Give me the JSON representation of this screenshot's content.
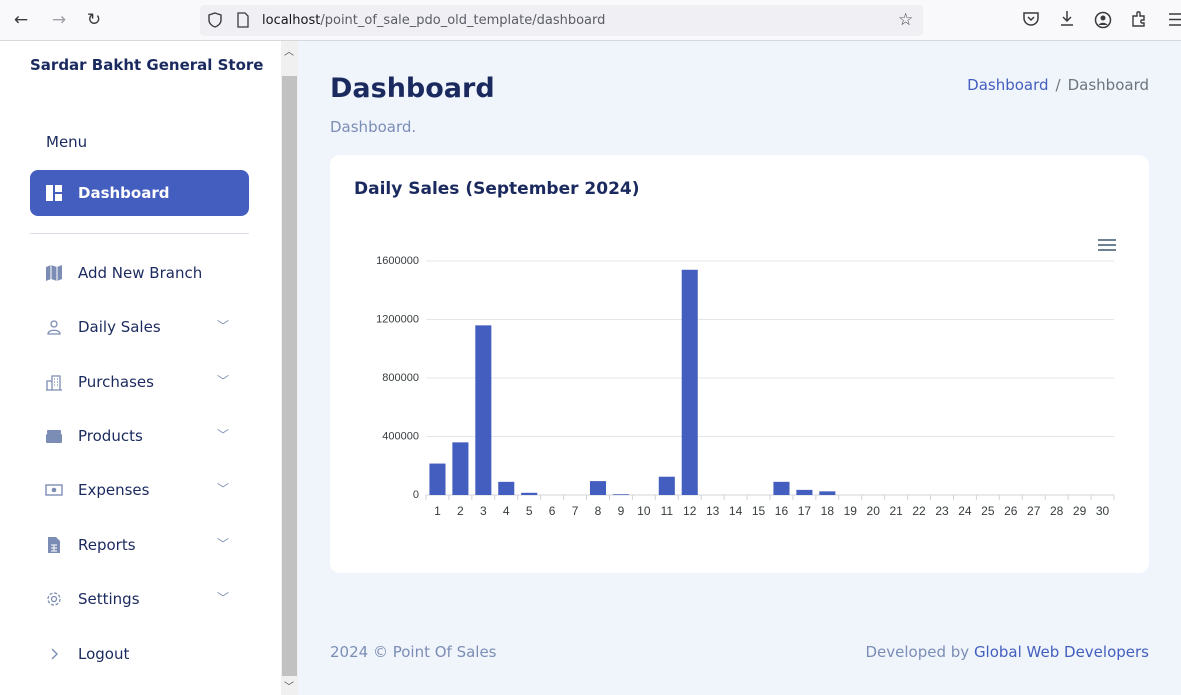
{
  "browser": {
    "url_host": "localhost",
    "url_path": "/point_of_sale_pdo_old_template/dashboard"
  },
  "sidebar": {
    "brand": "Sardar Bakht General Store",
    "menu_title": "Menu",
    "items": [
      {
        "label": "Dashboard",
        "icon": "grid-icon",
        "active": true,
        "has_submenu": false
      },
      {
        "label": "Add New Branch",
        "icon": "map-icon",
        "active": false,
        "has_submenu": false
      },
      {
        "label": "Daily Sales",
        "icon": "person-icon",
        "active": false,
        "has_submenu": true
      },
      {
        "label": "Purchases",
        "icon": "building-icon",
        "active": false,
        "has_submenu": true
      },
      {
        "label": "Products",
        "icon": "box-icon",
        "active": false,
        "has_submenu": true
      },
      {
        "label": "Expenses",
        "icon": "cash-icon",
        "active": false,
        "has_submenu": true
      },
      {
        "label": "Reports",
        "icon": "document-icon",
        "active": false,
        "has_submenu": true
      },
      {
        "label": "Settings",
        "icon": "gear-icon",
        "active": false,
        "has_submenu": true
      },
      {
        "label": "Logout",
        "icon": "chevron-right-icon",
        "active": false,
        "has_submenu": false
      }
    ]
  },
  "header": {
    "title": "Dashboard",
    "subtitle": "Dashboard.",
    "breadcrumb": [
      "Dashboard",
      "Dashboard"
    ]
  },
  "card": {
    "title": "Daily Sales (September 2024)"
  },
  "chart_data": {
    "type": "bar",
    "categories": [
      "1",
      "2",
      "3",
      "4",
      "5",
      "6",
      "7",
      "8",
      "9",
      "10",
      "11",
      "12",
      "13",
      "14",
      "15",
      "16",
      "17",
      "18",
      "19",
      "20",
      "21",
      "22",
      "23",
      "24",
      "25",
      "26",
      "27",
      "28",
      "29",
      "30"
    ],
    "values": [
      215000,
      360000,
      1160000,
      90000,
      15000,
      0,
      0,
      95000,
      5000,
      0,
      125000,
      1540000,
      0,
      0,
      0,
      90000,
      35000,
      25000,
      0,
      0,
      0,
      0,
      0,
      0,
      0,
      0,
      0,
      0,
      0,
      0
    ],
    "yticks": [
      "0",
      "400000",
      "800000",
      "1200000",
      "1600000"
    ],
    "ylim": [
      0,
      1600000
    ],
    "grid": true,
    "bar_color": "#435ebe"
  },
  "footer": {
    "left": "2024 © Point Of Sales",
    "right_prefix": "Developed by ",
    "right_link": "Global Web Developers"
  },
  "colors": {
    "accent": "#435ebe",
    "text_dark": "#1b2a5e",
    "muted": "#7c8db5",
    "background": "#f0f5fc"
  }
}
